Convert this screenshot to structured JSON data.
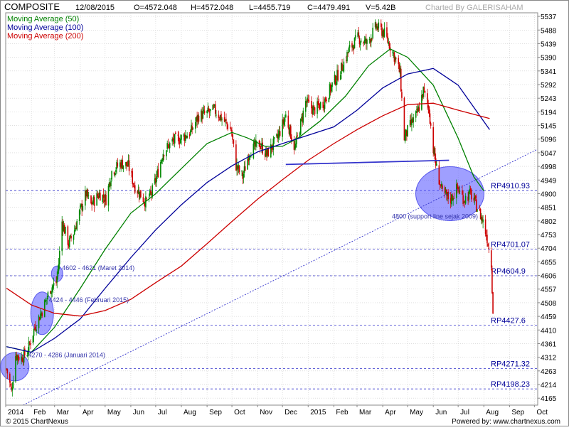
{
  "header": {
    "symbol": "COMPOSITE",
    "date": "12/08/2015",
    "open": "O=4572.048",
    "high": "H=4572.048",
    "low": "L=4455.719",
    "close": "C=4479.491",
    "volume": "V=5.42B",
    "charted_by": "Charted By GALERISAHAM"
  },
  "legend": [
    {
      "label": "Moving Average (50)",
      "color": "#008000"
    },
    {
      "label": "Moving Average (100)",
      "color": "#000099"
    },
    {
      "label": "Moving Average (200)",
      "color": "#cc0000"
    }
  ],
  "footer": {
    "copyright": "© 2015 ChartNexus",
    "powered": "Powered by: www.chartnexus.com"
  },
  "chart_data": {
    "type": "candlestick",
    "ylim": [
      4140,
      5550
    ],
    "y_ticks": [
      "5537",
      "5488",
      "5439",
      "5390",
      "5341",
      "5292",
      "5243",
      "5194",
      "5145",
      "5096",
      "5047",
      "4998",
      "4949",
      "4900",
      "4851",
      "4802",
      "4753",
      "4704",
      "4655",
      "4606",
      "4557",
      "4508",
      "4459",
      "4410",
      "4361",
      "4312",
      "4263",
      "4214",
      "4165"
    ],
    "x_start": "2014-01-01",
    "x_end": "2015-10-05",
    "x_ticks": [
      {
        "label": "2014",
        "date": "2014-01-01"
      },
      {
        "label": "Feb",
        "date": "2014-02-01"
      },
      {
        "label": "Mar",
        "date": "2014-03-01"
      },
      {
        "label": "Apr",
        "date": "2014-04-01"
      },
      {
        "label": "May",
        "date": "2014-05-01"
      },
      {
        "label": "Jun",
        "date": "2014-06-01"
      },
      {
        "label": "Jul",
        "date": "2014-07-01"
      },
      {
        "label": "Aug",
        "date": "2014-08-01"
      },
      {
        "label": "Sep",
        "date": "2014-09-01"
      },
      {
        "label": "Oct",
        "date": "2014-10-01"
      },
      {
        "label": "Nov",
        "date": "2014-11-01"
      },
      {
        "label": "Dec",
        "date": "2014-12-01"
      },
      {
        "label": "2015",
        "date": "2015-01-01"
      },
      {
        "label": "Feb",
        "date": "2015-02-01"
      },
      {
        "label": "Mar",
        "date": "2015-03-01"
      },
      {
        "label": "Apr",
        "date": "2015-04-01"
      },
      {
        "label": "May",
        "date": "2015-05-01"
      },
      {
        "label": "Jun",
        "date": "2015-06-01"
      },
      {
        "label": "Jul",
        "date": "2015-07-01"
      },
      {
        "label": "Aug",
        "date": "2015-08-01"
      },
      {
        "label": "Sep",
        "date": "2015-09-01"
      },
      {
        "label": "Oct",
        "date": "2015-10-01"
      }
    ],
    "price_path": [
      [
        "2014-01-02",
        4270
      ],
      [
        "2014-01-08",
        4190
      ],
      [
        "2014-01-13",
        4320
      ],
      [
        "2014-01-20",
        4310
      ],
      [
        "2014-01-27",
        4330
      ],
      [
        "2014-02-05",
        4420
      ],
      [
        "2014-02-14",
        4480
      ],
      [
        "2014-02-24",
        4560
      ],
      [
        "2014-03-03",
        4580
      ],
      [
        "2014-03-06",
        4650
      ],
      [
        "2014-03-10",
        4800
      ],
      [
        "2014-03-18",
        4720
      ],
      [
        "2014-03-24",
        4760
      ],
      [
        "2014-04-01",
        4840
      ],
      [
        "2014-04-08",
        4900
      ],
      [
        "2014-04-14",
        4860
      ],
      [
        "2014-04-24",
        4900
      ],
      [
        "2014-05-02",
        4880
      ],
      [
        "2014-05-09",
        4980
      ],
      [
        "2014-05-20",
        5010
      ],
      [
        "2014-05-29",
        5000
      ],
      [
        "2014-06-05",
        4930
      ],
      [
        "2014-06-12",
        4900
      ],
      [
        "2014-06-19",
        4870
      ],
      [
        "2014-06-26",
        4900
      ],
      [
        "2014-07-04",
        4980
      ],
      [
        "2014-07-10",
        5050
      ],
      [
        "2014-07-22",
        5090
      ],
      [
        "2014-08-01",
        5100
      ],
      [
        "2014-08-12",
        5120
      ],
      [
        "2014-08-22",
        5180
      ],
      [
        "2014-09-02",
        5190
      ],
      [
        "2014-09-10",
        5200
      ],
      [
        "2014-09-22",
        5160
      ],
      [
        "2014-09-30",
        5130
      ],
      [
        "2014-10-06",
        5000
      ],
      [
        "2014-10-14",
        4960
      ],
      [
        "2014-10-22",
        5050
      ],
      [
        "2014-11-03",
        5080
      ],
      [
        "2014-11-12",
        5040
      ],
      [
        "2014-11-25",
        5100
      ],
      [
        "2014-12-05",
        5180
      ],
      [
        "2014-12-16",
        5060
      ],
      [
        "2014-12-29",
        5230
      ],
      [
        "2015-01-08",
        5200
      ],
      [
        "2015-01-20",
        5230
      ],
      [
        "2015-01-30",
        5290
      ],
      [
        "2015-02-10",
        5350
      ],
      [
        "2015-02-20",
        5420
      ],
      [
        "2015-03-02",
        5460
      ],
      [
        "2015-03-13",
        5440
      ],
      [
        "2015-03-24",
        5500
      ],
      [
        "2015-04-02",
        5480
      ],
      [
        "2015-04-10",
        5430
      ],
      [
        "2015-04-17",
        5380
      ],
      [
        "2015-04-22",
        5330
      ],
      [
        "2015-04-27",
        5100
      ],
      [
        "2015-05-05",
        5150
      ],
      [
        "2015-05-13",
        5190
      ],
      [
        "2015-05-20",
        5270
      ],
      [
        "2015-05-27",
        5200
      ],
      [
        "2015-06-01",
        5060
      ],
      [
        "2015-06-05",
        4990
      ],
      [
        "2015-06-12",
        4900
      ],
      [
        "2015-06-22",
        4880
      ],
      [
        "2015-06-30",
        4920
      ],
      [
        "2015-07-08",
        4880
      ],
      [
        "2015-07-16",
        4900
      ],
      [
        "2015-07-24",
        4850
      ],
      [
        "2015-07-31",
        4800
      ],
      [
        "2015-08-05",
        4740
      ],
      [
        "2015-08-10",
        4650
      ],
      [
        "2015-08-12",
        4480
      ]
    ],
    "series": [
      {
        "name": "Moving Average (50)",
        "color": "#008000",
        "points": [
          [
            "2014-01-02",
            4350
          ],
          [
            "2014-02-01",
            4330
          ],
          [
            "2014-03-01",
            4420
          ],
          [
            "2014-04-01",
            4560
          ],
          [
            "2014-05-01",
            4700
          ],
          [
            "2014-06-01",
            4830
          ],
          [
            "2014-07-01",
            4900
          ],
          [
            "2014-08-01",
            4990
          ],
          [
            "2014-09-01",
            5080
          ],
          [
            "2014-10-01",
            5120
          ],
          [
            "2014-10-20",
            5100
          ],
          [
            "2014-11-10",
            5070
          ],
          [
            "2014-12-01",
            5070
          ],
          [
            "2014-12-20",
            5100
          ],
          [
            "2015-01-15",
            5160
          ],
          [
            "2015-02-15",
            5250
          ],
          [
            "2015-03-15",
            5360
          ],
          [
            "2015-04-10",
            5420
          ],
          [
            "2015-05-01",
            5390
          ],
          [
            "2015-06-01",
            5290
          ],
          [
            "2015-07-01",
            5100
          ],
          [
            "2015-07-20",
            4960
          ],
          [
            "2015-08-01",
            4910
          ]
        ]
      },
      {
        "name": "Moving Average (100)",
        "color": "#000099",
        "points": [
          [
            "2014-01-02",
            4350
          ],
          [
            "2014-02-01",
            4330
          ],
          [
            "2014-03-01",
            4380
          ],
          [
            "2014-04-01",
            4450
          ],
          [
            "2014-05-01",
            4560
          ],
          [
            "2014-06-01",
            4670
          ],
          [
            "2014-07-01",
            4770
          ],
          [
            "2014-08-01",
            4860
          ],
          [
            "2014-09-01",
            4940
          ],
          [
            "2014-10-01",
            5000
          ],
          [
            "2014-11-01",
            5050
          ],
          [
            "2014-12-01",
            5080
          ],
          [
            "2015-01-01",
            5110
          ],
          [
            "2015-02-01",
            5140
          ],
          [
            "2015-03-01",
            5200
          ],
          [
            "2015-04-01",
            5280
          ],
          [
            "2015-05-01",
            5330
          ],
          [
            "2015-06-01",
            5350
          ],
          [
            "2015-07-01",
            5290
          ],
          [
            "2015-08-08",
            5130
          ]
        ]
      },
      {
        "name": "Moving Average (200)",
        "color": "#cc0000",
        "points": [
          [
            "2014-01-02",
            4560
          ],
          [
            "2014-02-01",
            4500
          ],
          [
            "2014-03-01",
            4470
          ],
          [
            "2014-04-01",
            4460
          ],
          [
            "2014-05-01",
            4480
          ],
          [
            "2014-06-01",
            4520
          ],
          [
            "2014-07-01",
            4580
          ],
          [
            "2014-08-01",
            4640
          ],
          [
            "2014-09-01",
            4720
          ],
          [
            "2014-10-01",
            4800
          ],
          [
            "2014-11-01",
            4880
          ],
          [
            "2014-12-01",
            4950
          ],
          [
            "2015-01-01",
            5020
          ],
          [
            "2015-02-01",
            5080
          ],
          [
            "2015-03-01",
            5130
          ],
          [
            "2015-04-01",
            5180
          ],
          [
            "2015-05-01",
            5220
          ],
          [
            "2015-06-01",
            5225
          ],
          [
            "2015-07-01",
            5200
          ],
          [
            "2015-08-08",
            5170
          ]
        ]
      }
    ],
    "support_levels": [
      {
        "label": "RP4910.93",
        "value": 4910.93
      },
      {
        "label": "RP4701.07",
        "value": 4701.07
      },
      {
        "label": "RP4604.9",
        "value": 4604.9
      },
      {
        "label": "RP4427.6",
        "value": 4427.6
      },
      {
        "label": "RP4271.32",
        "value": 4271.32
      },
      {
        "label": "RP4198.23",
        "value": 4198.23
      }
    ],
    "annotations": [
      {
        "text": "4602 - 4621 (Maret 2014)",
        "date": "2014-03-10",
        "value": 4625
      },
      {
        "text": "4424 - 4446 (Februari 2015)",
        "date": "2014-02-22",
        "value": 4510
      },
      {
        "text": "4270 - 4286 (Januari 2014)",
        "date": "2014-01-28",
        "value": 4312
      },
      {
        "text": "4800 (support line sejak 2009)",
        "date": "2015-04-12",
        "value": 4810
      }
    ],
    "highlights": [
      {
        "date": "2014-03-04",
        "value": 4612,
        "rx": 8,
        "ry": 11
      },
      {
        "date": "2014-02-14",
        "value": 4470,
        "rx": 16,
        "ry": 30
      },
      {
        "date": "2014-01-12",
        "value": 4278,
        "rx": 20,
        "ry": 20
      },
      {
        "date": "2015-06-21",
        "value": 4900,
        "rx": 48,
        "ry": 38
      }
    ],
    "trendlines": [
      {
        "name": "neckline",
        "color": "#3333cc",
        "from": [
          "2014-12-05",
          5005
        ],
        "to": [
          "2015-06-20",
          5020
        ]
      },
      {
        "name": "support-line",
        "color": "#3333cc",
        "dashed": true,
        "from": [
          "2014-01-22",
          4140
        ],
        "to": [
          "2015-10-05",
          5060
        ]
      }
    ]
  }
}
